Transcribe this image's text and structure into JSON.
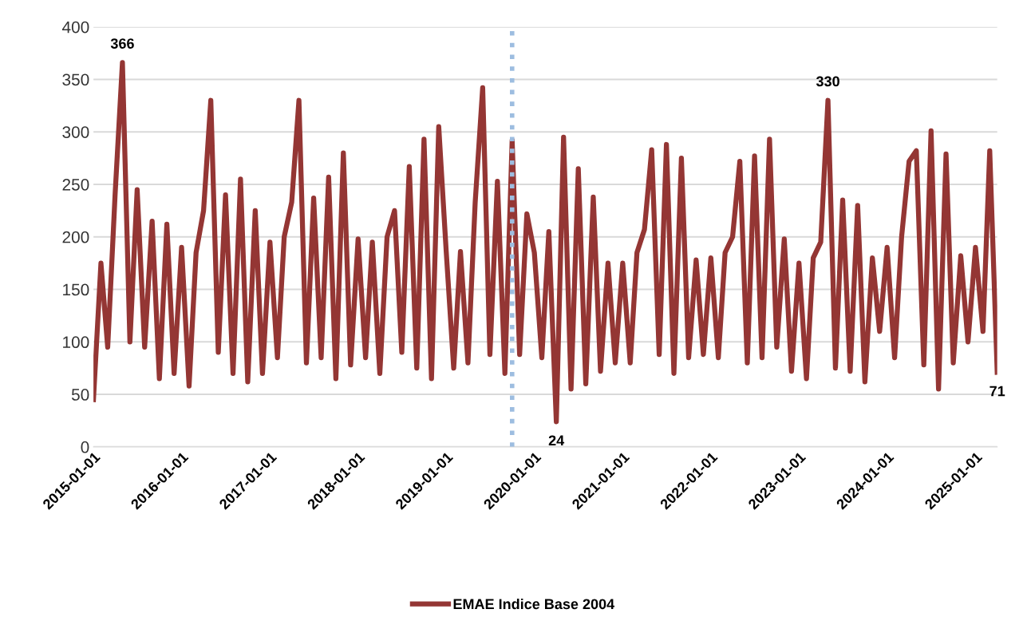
{
  "chart_data": {
    "type": "line",
    "legend": "bottom",
    "grid": "y",
    "line_style": "solid",
    "marker": "none",
    "xlim": [
      "2015-01-01",
      "2025-04-01"
    ],
    "xticks": [
      {
        "value": "2015-01-01",
        "label": "2015-01-01"
      },
      {
        "value": "2016-01-01",
        "label": "2016-01-01"
      },
      {
        "value": "2017-01-01",
        "label": "2017-01-01"
      },
      {
        "value": "2018-01-01",
        "label": "2018-01-01"
      },
      {
        "value": "2019-01-01",
        "label": "2019-01-01"
      },
      {
        "value": "2020-01-01",
        "label": "2020-01-01"
      },
      {
        "value": "2021-01-01",
        "label": "2021-01-01"
      },
      {
        "value": "2022-01-01",
        "label": "2022-01-01"
      },
      {
        "value": "2023-01-01",
        "label": "2023-01-01"
      },
      {
        "value": "2024-01-01",
        "label": "2024-01-01"
      },
      {
        "value": "2025-01-01",
        "label": "2025-01-01"
      }
    ],
    "ylim": [
      0,
      400
    ],
    "yticks": [
      0,
      50,
      100,
      150,
      200,
      250,
      300,
      350,
      400
    ],
    "ref_lines": [
      {
        "axis": "x",
        "value": "2019-10-01",
        "color": "#9dbde0",
        "line_style": "dotted"
      }
    ],
    "annotations": [
      {
        "text": "366",
        "x": "2015-05",
        "y": 366
      },
      {
        "text": "24",
        "x": "2020-04",
        "y": 24
      },
      {
        "text": "330",
        "x": "2023-05",
        "y": 330
      },
      {
        "text": "71",
        "x": "2025-04",
        "y": 71
      }
    ],
    "x": [
      "2015-01",
      "2015-02",
      "2015-03",
      "2015-04",
      "2015-05",
      "2015-06",
      "2015-07",
      "2015-08",
      "2015-09",
      "2015-10",
      "2015-11",
      "2015-12",
      "2016-01",
      "2016-02",
      "2016-03",
      "2016-04",
      "2016-05",
      "2016-06",
      "2016-07",
      "2016-08",
      "2016-09",
      "2016-10",
      "2016-11",
      "2016-12",
      "2017-01",
      "2017-02",
      "2017-03",
      "2017-04",
      "2017-05",
      "2017-06",
      "2017-07",
      "2017-08",
      "2017-09",
      "2017-10",
      "2017-11",
      "2017-12",
      "2018-01",
      "2018-02",
      "2018-03",
      "2018-04",
      "2018-05",
      "2018-06",
      "2018-07",
      "2018-08",
      "2018-09",
      "2018-10",
      "2018-11",
      "2018-12",
      "2019-01",
      "2019-02",
      "2019-03",
      "2019-04",
      "2019-05",
      "2019-06",
      "2019-07",
      "2019-08",
      "2019-09",
      "2019-10",
      "2019-11",
      "2019-12",
      "2020-01",
      "2020-02",
      "2020-03",
      "2020-04",
      "2020-05",
      "2020-06",
      "2020-07",
      "2020-08",
      "2020-09",
      "2020-10",
      "2020-11",
      "2020-12",
      "2021-01",
      "2021-02",
      "2021-03",
      "2021-04",
      "2021-05",
      "2021-06",
      "2021-07",
      "2021-08",
      "2021-09",
      "2021-10",
      "2021-11",
      "2021-12",
      "2022-01",
      "2022-02",
      "2022-03",
      "2022-04",
      "2022-05",
      "2022-06",
      "2022-07",
      "2022-08",
      "2022-09",
      "2022-10",
      "2022-11",
      "2022-12",
      "2023-01",
      "2023-02",
      "2023-03",
      "2023-04",
      "2023-05",
      "2023-06",
      "2023-07",
      "2023-08",
      "2023-09",
      "2023-10",
      "2023-11",
      "2023-12",
      "2024-01",
      "2024-02",
      "2024-03",
      "2024-04",
      "2024-05",
      "2024-06",
      "2024-07",
      "2024-08",
      "2024-09",
      "2024-10",
      "2024-11",
      "2024-12",
      "2025-01",
      "2025-02",
      "2025-03",
      "2025-04"
    ],
    "series": [
      {
        "name": "EMAE Indice Base 2004",
        "color": "#943634",
        "values": [
          45,
          175,
          95,
          242,
          366,
          100,
          245,
          95,
          215,
          65,
          212,
          70,
          190,
          58,
          185,
          225,
          330,
          90,
          240,
          70,
          255,
          62,
          225,
          70,
          195,
          85,
          200,
          233,
          330,
          80,
          237,
          85,
          257,
          65,
          280,
          78,
          198,
          85,
          195,
          70,
          200,
          225,
          90,
          267,
          75,
          293,
          65,
          305,
          186,
          75,
          186,
          80,
          233,
          342,
          88,
          253,
          70,
          292,
          88,
          222,
          185,
          85,
          205,
          24,
          295,
          55,
          265,
          60,
          238,
          72,
          175,
          80,
          175,
          80,
          185,
          207,
          283,
          88,
          288,
          70,
          275,
          85,
          178,
          88,
          180,
          85,
          185,
          200,
          272,
          80,
          277,
          85,
          293,
          95,
          198,
          72,
          175,
          65,
          180,
          195,
          330,
          75,
          235,
          72,
          230,
          62,
          180,
          110,
          190,
          85,
          200,
          272,
          282,
          78,
          301,
          55,
          279,
          80,
          182,
          100,
          190,
          110,
          282,
          71
        ]
      }
    ]
  }
}
